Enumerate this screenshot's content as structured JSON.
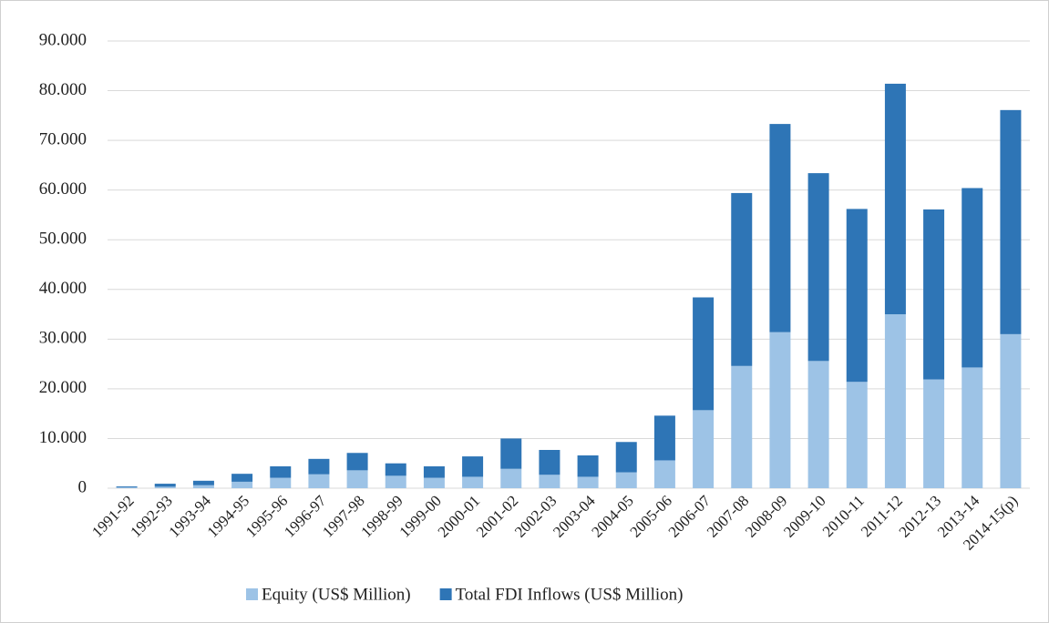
{
  "chart_data": {
    "type": "stacked_bar",
    "categories": [
      "1991-92",
      "1992-93",
      "1993-94",
      "1994-95",
      "1995-96",
      "1996-97",
      "1997-98",
      "1998-99",
      "1999-00",
      "2000-01",
      "2001-02",
      "2002-03",
      "2003-04",
      "2004-05",
      "2005-06",
      "2006-07",
      "2007-08",
      "2008-09",
      "2009-10",
      "2010-11",
      "2011-12",
      "2012-13",
      "2013-14",
      "2014-15(p)"
    ],
    "series": [
      {
        "name": "Equity (US$ Million)",
        "color": "#9dc3e6",
        "values": [
          150,
          300,
          600,
          1300,
          2100,
          2800,
          3600,
          2500,
          2100,
          2300,
          3900,
          2700,
          2300,
          3200,
          5600,
          15700,
          24600,
          31400,
          25600,
          21400,
          35000,
          21900,
          24300,
          31000
        ]
      },
      {
        "name": "Total FDI Inflows (US$ Million)",
        "color": "#2e75b6",
        "values": [
          200,
          600,
          900,
          1600,
          2300,
          3100,
          3500,
          2500,
          2300,
          4100,
          6100,
          5000,
          4300,
          6100,
          9000,
          22700,
          34800,
          41900,
          37800,
          34800,
          46400,
          34200,
          36100,
          45100
        ]
      }
    ],
    "ylim": [
      0,
      90000
    ],
    "yticks": [
      0,
      {
        "value": 10000,
        "label": "10.000"
      },
      {
        "value": 20000,
        "label": "20.000"
      },
      {
        "value": 30000,
        "label": "30.000"
      },
      {
        "value": 40000,
        "label": "40.000"
      },
      {
        "value": 50000,
        "label": "50.000"
      },
      {
        "value": 60000,
        "label": "60.000"
      },
      {
        "value": 70000,
        "label": "70.000"
      },
      {
        "value": 80000,
        "label": "80.000"
      },
      {
        "value": 90000,
        "label": "90.000"
      }
    ],
    "grid": true,
    "legend": "bottom"
  }
}
